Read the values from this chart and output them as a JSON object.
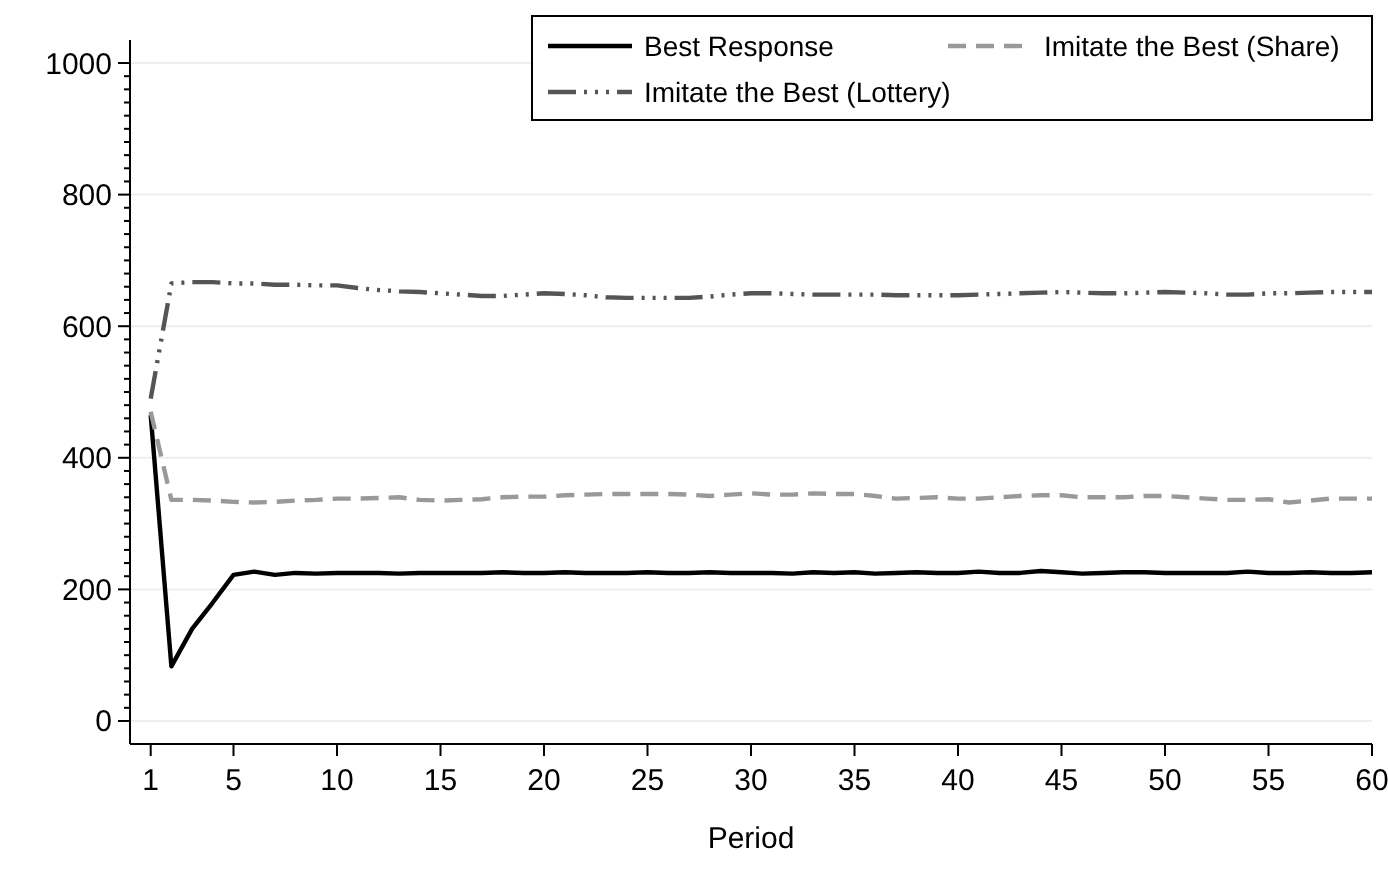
{
  "chart_data": {
    "type": "line",
    "xlabel": "Period",
    "xlim": [
      0,
      60
    ],
    "xticks": [
      1,
      5,
      10,
      15,
      20,
      25,
      30,
      35,
      40,
      45,
      50,
      55,
      60
    ],
    "ylim": [
      -35,
      1035
    ],
    "yticks": [
      0,
      {
        "value": 20,
        "label": null
      },
      {
        "value": 40,
        "label": null
      },
      {
        "value": 60,
        "label": null
      },
      {
        "value": 80,
        "label": null
      },
      {
        "value": 100,
        "label": null
      },
      {
        "value": 120,
        "label": null
      },
      {
        "value": 140,
        "label": null
      },
      {
        "value": 160,
        "label": null
      },
      {
        "value": 180,
        "label": null
      },
      200,
      {
        "value": 220,
        "label": null
      },
      {
        "value": 240,
        "label": null
      },
      {
        "value": 260,
        "label": null
      },
      {
        "value": 280,
        "label": null
      },
      {
        "value": 300,
        "label": null
      },
      {
        "value": 320,
        "label": null
      },
      {
        "value": 340,
        "label": null
      },
      {
        "value": 360,
        "label": null
      },
      {
        "value": 380,
        "label": null
      },
      400,
      {
        "value": 420,
        "label": null
      },
      {
        "value": 440,
        "label": null
      },
      {
        "value": 460,
        "label": null
      },
      {
        "value": 480,
        "label": null
      },
      {
        "value": 500,
        "label": null
      },
      {
        "value": 520,
        "label": null
      },
      {
        "value": 540,
        "label": null
      },
      {
        "value": 560,
        "label": null
      },
      {
        "value": 580,
        "label": null
      },
      600,
      {
        "value": 620,
        "label": null
      },
      {
        "value": 640,
        "label": null
      },
      {
        "value": 660,
        "label": null
      },
      {
        "value": 680,
        "label": null
      },
      {
        "value": 700,
        "label": null
      },
      {
        "value": 720,
        "label": null
      },
      {
        "value": 740,
        "label": null
      },
      {
        "value": 760,
        "label": null
      },
      {
        "value": 780,
        "label": null
      },
      800,
      {
        "value": 820,
        "label": null
      },
      {
        "value": 840,
        "label": null
      },
      {
        "value": 860,
        "label": null
      },
      {
        "value": 880,
        "label": null
      },
      {
        "value": 900,
        "label": null
      },
      {
        "value": 920,
        "label": null
      },
      {
        "value": 940,
        "label": null
      },
      {
        "value": 960,
        "label": null
      },
      {
        "value": 980,
        "label": null
      },
      1000
    ],
    "grid": "y",
    "legend": "top right",
    "marker": "none",
    "x": [
      1,
      2,
      3,
      4,
      5,
      6,
      7,
      8,
      9,
      10,
      11,
      12,
      13,
      14,
      15,
      16,
      17,
      18,
      19,
      20,
      21,
      22,
      23,
      24,
      25,
      26,
      27,
      28,
      29,
      30,
      31,
      32,
      33,
      34,
      35,
      36,
      37,
      38,
      39,
      40,
      41,
      42,
      43,
      44,
      45,
      46,
      47,
      48,
      49,
      50,
      51,
      52,
      53,
      54,
      55,
      56,
      57,
      58,
      59,
      60
    ],
    "series": [
      {
        "name": "Best Response",
        "color": "#000000",
        "line_style": "solid",
        "values": [
          465,
          83,
          140,
          180,
          222,
          227,
          222,
          225,
          224,
          225,
          225,
          225,
          224,
          225,
          225,
          225,
          225,
          226,
          225,
          225,
          226,
          225,
          225,
          225,
          226,
          225,
          225,
          226,
          225,
          225,
          225,
          224,
          226,
          225,
          226,
          224,
          225,
          226,
          225,
          225,
          227,
          225,
          225,
          228,
          226,
          224,
          225,
          226,
          226,
          225,
          225,
          225,
          225,
          227,
          225,
          225,
          226,
          225,
          225,
          226
        ]
      },
      {
        "name": "Imitate the Best (Share)",
        "color": "#999999",
        "line_style": "dashed",
        "values": [
          470,
          336,
          336,
          335,
          333,
          332,
          333,
          335,
          336,
          338,
          338,
          339,
          340,
          336,
          335,
          336,
          337,
          340,
          341,
          341,
          343,
          344,
          345,
          345,
          345,
          345,
          344,
          342,
          344,
          346,
          344,
          344,
          346,
          345,
          345,
          342,
          338,
          339,
          340,
          338,
          338,
          340,
          342,
          343,
          343,
          340,
          340,
          340,
          342,
          342,
          340,
          338,
          336,
          336,
          337,
          332,
          335,
          338,
          338,
          338
        ]
      },
      {
        "name": "Imitate the Best (Lottery)",
        "color": "#555555",
        "line_style": "dashdot",
        "values": [
          490,
          665,
          667,
          667,
          665,
          665,
          663,
          663,
          662,
          662,
          658,
          655,
          653,
          652,
          650,
          648,
          646,
          646,
          648,
          650,
          649,
          647,
          644,
          643,
          643,
          643,
          643,
          645,
          648,
          650,
          650,
          649,
          648,
          648,
          648,
          648,
          647,
          647,
          647,
          647,
          648,
          649,
          650,
          651,
          652,
          651,
          650,
          650,
          651,
          652,
          651,
          650,
          648,
          648,
          650,
          650,
          651,
          652,
          652,
          652
        ]
      }
    ]
  }
}
